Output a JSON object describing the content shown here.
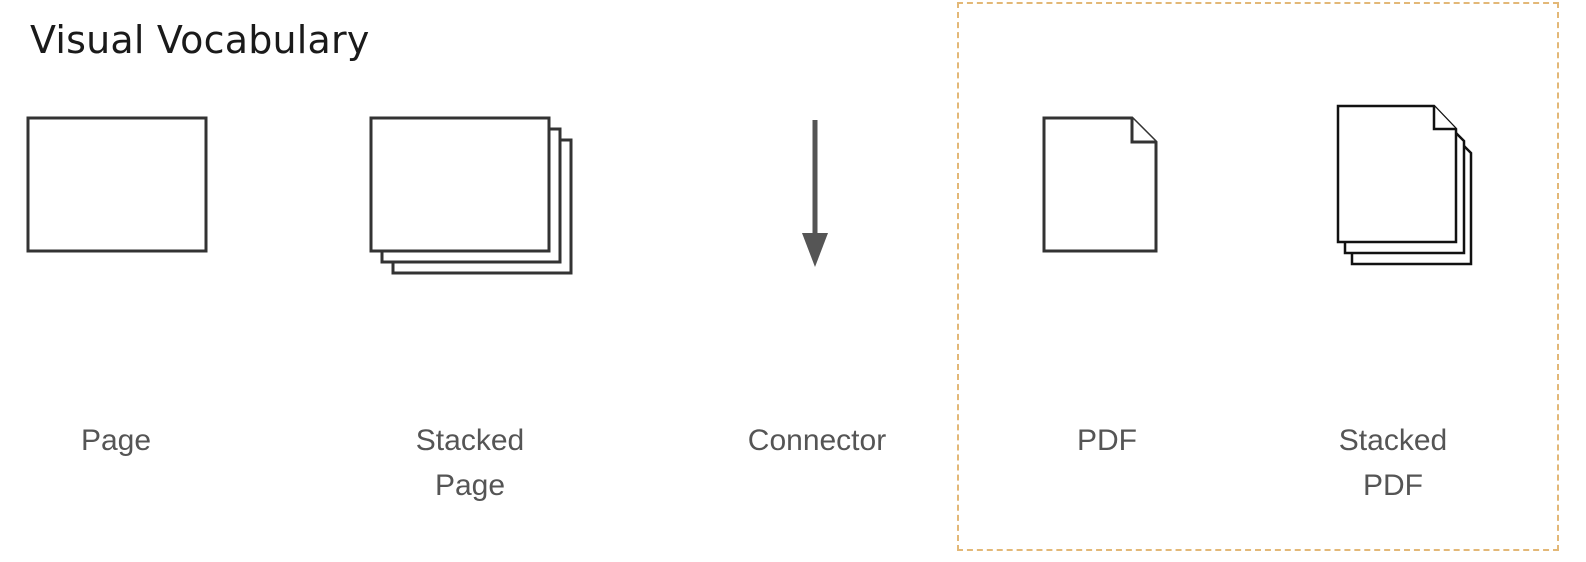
{
  "title": "Visual Vocabulary",
  "items": [
    {
      "icon": "page-icon",
      "label_lines": [
        "Page"
      ]
    },
    {
      "icon": "stacked-page-icon",
      "label_lines": [
        "Stacked",
        "Page"
      ]
    },
    {
      "icon": "connector-arrow-icon",
      "label_lines": [
        "Connector"
      ]
    },
    {
      "icon": "pdf-icon",
      "label_lines": [
        "PDF"
      ]
    },
    {
      "icon": "stacked-pdf-icon",
      "label_lines": [
        "Stacked",
        "PDF"
      ]
    }
  ],
  "highlight_color": "#e3b877",
  "stroke_color": "#333333",
  "label_color": "#555555"
}
